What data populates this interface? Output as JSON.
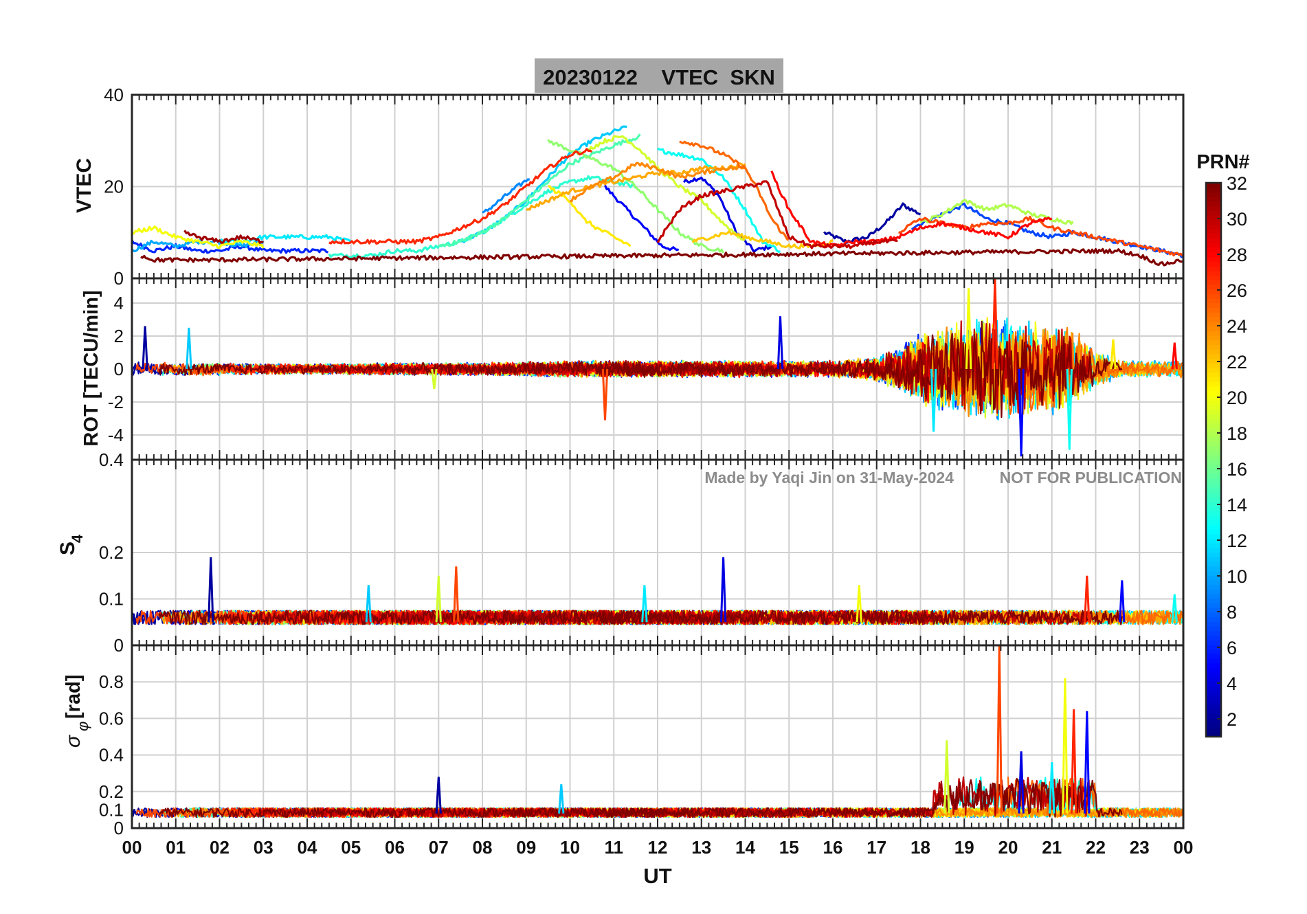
{
  "title": "20230122    VTEC  SKN",
  "watermark": {
    "credit": "Made by Yaqi Jin on 31-May-2024",
    "notice": "NOT FOR PUBLICATION"
  },
  "colors": {
    "title_box": "#a6a6a6",
    "grid": "#d0d0d0",
    "axis": "#262626",
    "watermark": "#8c8c8c"
  },
  "chart_data": [
    {
      "type": "line",
      "panel": "vtec",
      "ylabel": "VTEC",
      "ylim": [
        0,
        40
      ],
      "yticks": [
        0,
        20,
        40
      ],
      "grid": true,
      "x_range": [
        0,
        24
      ],
      "note": "one trace per satellite PRN, coloured by PRN via jet colormap",
      "series": [
        {
          "prn": 2,
          "x": [
            15.8,
            16.3,
            16.8,
            17.2,
            17.6,
            18.0
          ],
          "y": [
            10,
            8,
            9,
            12,
            16,
            14
          ]
        },
        {
          "prn": 4,
          "x": [
            12.6,
            13.0,
            13.4,
            13.8,
            14.2,
            14.6
          ],
          "y": [
            21,
            22,
            18,
            10,
            6,
            7
          ]
        },
        {
          "prn": 5,
          "x": [
            10.8,
            11.3,
            11.8,
            12.1,
            12.5
          ],
          "y": [
            20,
            15,
            10,
            7,
            6
          ]
        },
        {
          "prn": 6,
          "x": [
            0,
            0.5,
            1.0,
            1.5,
            2.0,
            2.5,
            3.0,
            3.5,
            4.0,
            4.5
          ],
          "y": [
            8,
            6,
            7,
            6,
            6,
            7,
            6,
            6,
            6,
            6
          ]
        },
        {
          "prn": 7,
          "x": [
            17.8,
            18.5,
            19.0,
            19.5,
            20.0,
            20.5,
            21.0,
            21.5,
            22.0,
            22.5,
            23.0,
            23.5,
            24.0
          ],
          "y": [
            11,
            14,
            16,
            13,
            12,
            10,
            9,
            10,
            9,
            8,
            7,
            6,
            5
          ]
        },
        {
          "prn": 9,
          "x": [
            8.0,
            8.4,
            8.8,
            9.1
          ],
          "y": [
            14,
            17,
            20,
            22
          ]
        },
        {
          "prn": 10,
          "x": [
            0,
            0.5,
            1.0,
            1.5,
            2.0,
            2.5,
            3.0
          ],
          "y": [
            6,
            8,
            7,
            8,
            8,
            7,
            8
          ]
        },
        {
          "prn": 11,
          "x": [
            7.5,
            8.0,
            8.5,
            9.0,
            9.5,
            10.0,
            10.5,
            11.0,
            11.3
          ],
          "y": [
            8,
            10,
            13,
            17,
            22,
            27,
            30,
            32,
            33
          ]
        },
        {
          "prn": 12,
          "x": [
            2.0,
            2.5,
            3.0,
            3.5,
            4.0,
            4.5,
            5.0
          ],
          "y": [
            8,
            8,
            9,
            9,
            9,
            9,
            8
          ]
        },
        {
          "prn": 13,
          "x": [
            12.0,
            12.5,
            13.0,
            13.5,
            14.0,
            14.4,
            14.8
          ],
          "y": [
            28,
            27,
            26,
            22,
            15,
            8,
            6
          ]
        },
        {
          "prn": 14,
          "x": [
            4.5,
            5.0,
            5.5,
            6.0,
            6.5,
            7.0,
            7.5,
            8.0,
            8.5,
            9.0,
            9.5,
            10.0,
            10.5,
            11.0,
            11.5
          ],
          "y": [
            5,
            5,
            5,
            6,
            6,
            7,
            8,
            10,
            13,
            16,
            19,
            21,
            22,
            21,
            20
          ]
        },
        {
          "prn": 15,
          "x": [
            7.0,
            7.5,
            8.0,
            8.5,
            9.0,
            9.5,
            10.0,
            10.5,
            11.0,
            11.6
          ],
          "y": [
            7,
            8,
            10,
            13,
            17,
            21,
            25,
            27,
            29,
            31
          ]
        },
        {
          "prn": 17,
          "x": [
            9.5,
            10.0,
            10.5,
            11.0,
            11.5,
            12.0,
            12.5,
            13.0,
            13.5
          ],
          "y": [
            30,
            28,
            26,
            24,
            20,
            15,
            10,
            7,
            6
          ]
        },
        {
          "prn": 18,
          "x": [
            18.0,
            18.5,
            19.0,
            19.5,
            20.0,
            20.5,
            21.0,
            21.5
          ],
          "y": [
            12,
            14,
            17,
            15,
            16,
            14,
            13,
            12
          ]
        },
        {
          "prn": 19,
          "x": [
            10.4,
            10.8,
            11.2,
            11.6,
            12.0,
            12.5,
            13.0,
            13.5,
            14.0
          ],
          "y": [
            28,
            30,
            31,
            28,
            24,
            20,
            17,
            12,
            8
          ]
        },
        {
          "prn": 20,
          "x": [
            0,
            0.5,
            1.0,
            1.5,
            2.0,
            2.5,
            3.0
          ],
          "y": [
            10,
            11,
            9,
            8,
            7,
            8,
            7
          ]
        },
        {
          "prn": 21,
          "x": [
            9.5,
            10.0,
            10.3,
            10.6,
            11.0,
            11.4
          ],
          "y": [
            20,
            17,
            13,
            11,
            9,
            7
          ]
        },
        {
          "prn": 22,
          "x": [
            12.8,
            13.2,
            13.6,
            14.0,
            14.5,
            15.0,
            15.5,
            16.0
          ],
          "y": [
            8,
            9,
            10,
            9,
            8,
            7,
            7,
            8
          ]
        },
        {
          "prn": 23,
          "x": [
            9.0,
            9.5,
            10.0,
            10.5,
            11.0,
            11.5,
            12.0,
            12.5,
            13.0,
            13.5,
            14.0
          ],
          "y": [
            15,
            17,
            19,
            20,
            21,
            22,
            23,
            23,
            24,
            24,
            25
          ]
        },
        {
          "prn": 24,
          "x": [
            10.0,
            10.5,
            11.0,
            11.5,
            12.0,
            12.5,
            13.0,
            13.5,
            14.0
          ],
          "y": [
            17,
            20,
            22,
            25,
            24,
            22,
            23,
            24,
            24
          ]
        },
        {
          "prn": 25,
          "x": [
            12.5,
            13.0,
            13.5,
            14.0,
            14.3,
            14.6,
            15.0
          ],
          "y": [
            30,
            29,
            27,
            24,
            19,
            13,
            8
          ]
        },
        {
          "prn": 26,
          "x": [
            17.5,
            18.0,
            18.5,
            19.0,
            19.5,
            20.0,
            20.5,
            21.0,
            21.5,
            22.0,
            22.5,
            23.0,
            23.5,
            24.0
          ],
          "y": [
            10,
            13,
            12,
            11,
            12,
            12,
            13,
            11,
            10,
            9,
            8,
            7,
            6,
            5
          ]
        },
        {
          "prn": 27,
          "x": [
            4.5,
            5.0,
            5.5,
            6.0,
            6.5,
            7.0,
            7.5,
            8.0,
            8.5,
            9.0,
            9.5,
            10.0,
            10.5
          ],
          "y": [
            8,
            8,
            8,
            8,
            8,
            9,
            11,
            13,
            16,
            20,
            24,
            27,
            28
          ]
        },
        {
          "prn": 28,
          "x": [
            14.6,
            15.0,
            15.5,
            16.0,
            16.5,
            17.0,
            17.5,
            18.0,
            18.5,
            19.0,
            19.5,
            20.0,
            20.5,
            21.0
          ],
          "y": [
            23,
            15,
            8,
            7,
            8,
            8,
            9,
            11,
            12,
            11,
            10,
            9,
            12,
            13
          ]
        },
        {
          "prn": 30,
          "x": [
            12.0,
            12.5,
            13.0,
            13.5,
            14.0,
            14.5,
            15.0,
            15.5,
            16.0,
            16.5,
            17.0,
            17.5
          ],
          "y": [
            8,
            15,
            18,
            19,
            20,
            21,
            9,
            7,
            7,
            7,
            8,
            8
          ]
        },
        {
          "prn": 31,
          "x": [
            1.2,
            1.5,
            2.0,
            2.5,
            3.0
          ],
          "y": [
            10,
            9,
            8,
            9,
            8
          ]
        },
        {
          "prn": 32,
          "x": [
            0.2,
            0.5,
            1.0,
            1.5,
            1.8,
            22.5,
            23.0,
            23.5,
            24.0
          ],
          "y": [
            5,
            4,
            4,
            4,
            4,
            6,
            5,
            3,
            4
          ]
        }
      ]
    },
    {
      "type": "line",
      "panel": "rot",
      "ylabel": "ROT [TECU/min]",
      "ylim": [
        -5.5,
        5.5
      ],
      "yticks": [
        -4,
        -2,
        0,
        2,
        4
      ],
      "grid": true,
      "x_range": [
        0,
        24
      ],
      "note": "noisy traces around 0; strong fluctuations 17.5–22 UT",
      "activity_envelope": {
        "x": [
          0,
          2,
          4,
          6,
          8,
          10,
          12,
          14,
          16,
          17,
          17.5,
          18,
          18.5,
          19,
          19.5,
          20,
          20.5,
          21,
          21.5,
          22,
          22.5,
          23,
          24
        ],
        "amp": [
          0.7,
          0.6,
          0.5,
          0.6,
          0.6,
          0.8,
          0.8,
          0.8,
          0.8,
          1.2,
          2.2,
          3.5,
          4.2,
          4.6,
          5.0,
          5.0,
          4.6,
          4.4,
          4.0,
          1.8,
          0.9,
          0.8,
          0.8
        ]
      },
      "peaks": [
        {
          "x": 0.3,
          "y": 2.6
        },
        {
          "x": 1.3,
          "y": 2.5
        },
        {
          "x": 6.9,
          "y": -1.2
        },
        {
          "x": 10.8,
          "y": -3.1
        },
        {
          "x": 14.8,
          "y": 3.2
        },
        {
          "x": 18.3,
          "y": -3.8
        },
        {
          "x": 19.1,
          "y": 4.9
        },
        {
          "x": 19.7,
          "y": 5.5
        },
        {
          "x": 20.3,
          "y": -5.3
        },
        {
          "x": 21.4,
          "y": -4.9
        },
        {
          "x": 22.4,
          "y": 1.8
        },
        {
          "x": 23.8,
          "y": 1.6
        }
      ]
    },
    {
      "type": "line",
      "panel": "s4",
      "ylabel": "S4",
      "ylim": [
        0,
        0.4
      ],
      "yticks": [
        0,
        0.1,
        0.2,
        0.4
      ],
      "grid": true,
      "x_range": [
        0,
        24
      ],
      "note": "baseline ~0.04–0.07 with isolated spikes",
      "baseline": [
        0.04,
        0.07
      ],
      "peaks": [
        {
          "x": 1.8,
          "y": 0.19
        },
        {
          "x": 5.4,
          "y": 0.13
        },
        {
          "x": 7.0,
          "y": 0.15
        },
        {
          "x": 7.4,
          "y": 0.17
        },
        {
          "x": 13.5,
          "y": 0.19
        },
        {
          "x": 11.7,
          "y": 0.13
        },
        {
          "x": 16.6,
          "y": 0.13
        },
        {
          "x": 21.8,
          "y": 0.15
        },
        {
          "x": 22.6,
          "y": 0.14
        },
        {
          "x": 23.8,
          "y": 0.11
        }
      ]
    },
    {
      "type": "line",
      "panel": "sigma_phi",
      "ylabel": "σ_φ [rad]",
      "ylim": [
        0,
        1.0
      ],
      "yticks": [
        0,
        0.1,
        0.2,
        0.4,
        0.6,
        0.8
      ],
      "grid": true,
      "x_range": [
        0,
        24
      ],
      "note": "baseline ~0.05–0.12; enhancement 18.5–21.8 UT",
      "peaks": [
        {
          "x": 7.0,
          "y": 0.28
        },
        {
          "x": 9.8,
          "y": 0.24
        },
        {
          "x": 18.6,
          "y": 0.48
        },
        {
          "x": 19.8,
          "y": 1.0
        },
        {
          "x": 20.3,
          "y": 0.42
        },
        {
          "x": 21.0,
          "y": 0.36
        },
        {
          "x": 21.3,
          "y": 0.82
        },
        {
          "x": 21.5,
          "y": 0.65
        },
        {
          "x": 21.8,
          "y": 0.64
        }
      ]
    }
  ],
  "x_axis": {
    "label": "UT",
    "ticks": [
      "00",
      "01",
      "02",
      "03",
      "04",
      "05",
      "06",
      "07",
      "08",
      "09",
      "10",
      "11",
      "12",
      "13",
      "14",
      "15",
      "16",
      "17",
      "18",
      "19",
      "20",
      "21",
      "22",
      "23",
      "00"
    ]
  },
  "colorbar": {
    "title": "PRN#",
    "range": [
      1,
      32
    ],
    "colormap": "jet",
    "ticks": [
      "2",
      "4",
      "6",
      "8",
      "10",
      "12",
      "14",
      "16",
      "18",
      "20",
      "22",
      "24",
      "26",
      "28",
      "30",
      "32"
    ]
  }
}
